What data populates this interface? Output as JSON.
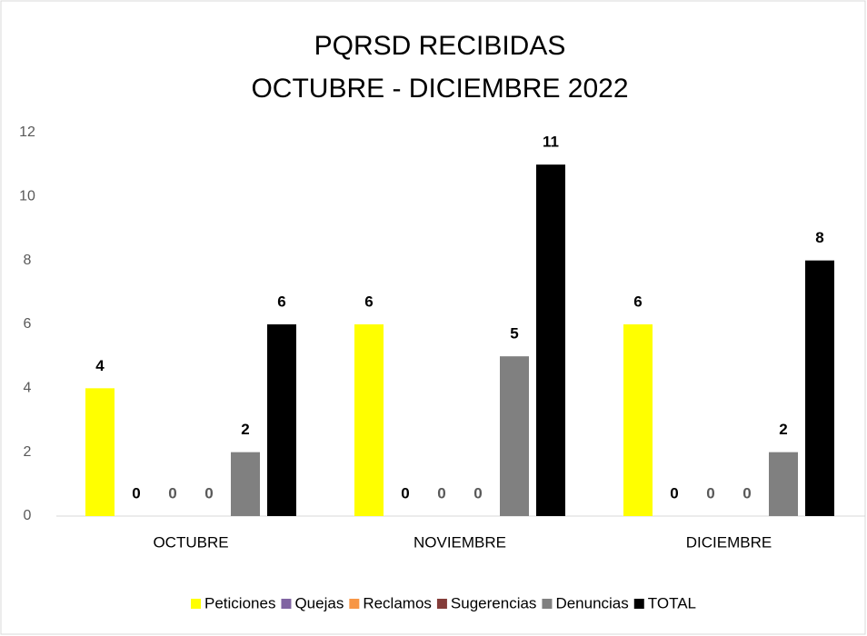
{
  "chart_data": {
    "type": "bar",
    "title": "PQRSD RECIBIDAS",
    "subtitle": "OCTUBRE - DICIEMBRE 2022",
    "categories": [
      "OCTUBRE",
      "NOVIEMBRE",
      "DICIEMBRE"
    ],
    "series": [
      {
        "name": "Peticiones",
        "color": "#ffff00",
        "label_color": "#000000",
        "values": [
          4,
          6,
          6
        ]
      },
      {
        "name": "Quejas",
        "color": "#8064a2",
        "label_color": "#000000",
        "values": [
          0,
          0,
          0
        ]
      },
      {
        "name": "Reclamos",
        "color": "#f79646",
        "label_color": "#595959",
        "values": [
          0,
          0,
          0
        ]
      },
      {
        "name": "Sugerencias",
        "color": "#843c39",
        "label_color": "#595959",
        "values": [
          0,
          0,
          0
        ]
      },
      {
        "name": "Denuncias",
        "color": "#808080",
        "label_color": "#000000",
        "values": [
          2,
          5,
          2
        ]
      },
      {
        "name": "TOTAL",
        "color": "#000000",
        "label_color": "#000000",
        "values": [
          6,
          11,
          8
        ]
      }
    ],
    "ylim": [
      0,
      12
    ],
    "yticks": [
      0,
      2,
      4,
      6,
      8,
      10,
      12
    ],
    "grid": false,
    "legend": "bottom"
  }
}
